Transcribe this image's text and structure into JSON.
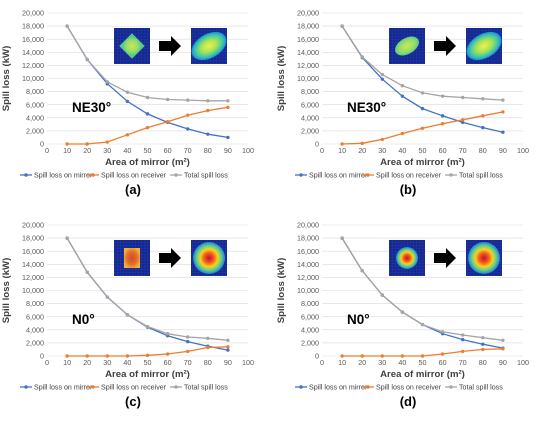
{
  "colors": {
    "mirror": "#4472C4",
    "receiver": "#ED7D31",
    "total": "#A5A5A5",
    "grid": "#D9D9D9",
    "axis_text": "#595959"
  },
  "chart_data": [
    {
      "type": "line",
      "panel_label": "(a)",
      "annotation": "NE30°",
      "inset_shapes": [
        "rotated-square",
        "ellipse"
      ],
      "xlabel": "Area of mirror (m²)",
      "ylabel": "Spill loss (kW)",
      "xlim": [
        0,
        100
      ],
      "ylim": [
        0,
        20000
      ],
      "xticks": [
        "0",
        "10",
        "20",
        "30",
        "40",
        "50",
        "60",
        "70",
        "80",
        "90",
        "100"
      ],
      "yticks": [
        "0",
        "2,000",
        "4,000",
        "6,000",
        "8,000",
        "10,000",
        "12,000",
        "14,000",
        "16,000",
        "18,000",
        "20,000"
      ],
      "legend": "bottom",
      "grid": true,
      "x": [
        10,
        20,
        30,
        40,
        50,
        60,
        70,
        80,
        90
      ],
      "series": [
        {
          "name": "Spill loss on mirror",
          "values": [
            18000,
            12900,
            9200,
            6500,
            4600,
            3300,
            2300,
            1500,
            1000
          ]
        },
        {
          "name": "Spill loss on receiver",
          "values": [
            0,
            0,
            300,
            1400,
            2500,
            3400,
            4400,
            5100,
            5600
          ]
        },
        {
          "name": "Total spill loss",
          "values": [
            18000,
            12900,
            9500,
            7900,
            7100,
            6800,
            6700,
            6600,
            6600
          ]
        }
      ]
    },
    {
      "type": "line",
      "panel_label": "(b)",
      "annotation": "NE30°",
      "inset_shapes": [
        "ellipse",
        "ellipse"
      ],
      "xlabel": "Area of mirror (m²)",
      "ylabel": "Spill loss (kW)",
      "xlim": [
        0,
        100
      ],
      "ylim": [
        0,
        20000
      ],
      "xticks": [
        "0",
        "10",
        "20",
        "30",
        "40",
        "50",
        "60",
        "70",
        "80",
        "90",
        "100"
      ],
      "yticks": [
        "0",
        "2,000",
        "4,000",
        "6,000",
        "8,000",
        "10,000",
        "12,000",
        "14,000",
        "16,000",
        "18,000",
        "20,000"
      ],
      "legend": "bottom",
      "grid": true,
      "x": [
        10,
        20,
        30,
        40,
        50,
        60,
        70,
        80,
        90
      ],
      "series": [
        {
          "name": "Spill loss on mirror",
          "values": [
            18000,
            13200,
            9900,
            7300,
            5400,
            4300,
            3300,
            2500,
            1800
          ]
        },
        {
          "name": "Spill loss on receiver",
          "values": [
            0,
            100,
            700,
            1600,
            2400,
            3100,
            3700,
            4300,
            4900
          ]
        },
        {
          "name": "Total spill loss",
          "values": [
            18000,
            13300,
            10600,
            8900,
            7800,
            7300,
            7100,
            6900,
            6700
          ]
        }
      ]
    },
    {
      "type": "line",
      "panel_label": "(c)",
      "annotation": "N0°",
      "inset_shapes": [
        "square",
        "circle"
      ],
      "xlabel": "Area of mirror (m²)",
      "ylabel": "Spill loss (kW)",
      "xlim": [
        0,
        100
      ],
      "ylim": [
        0,
        20000
      ],
      "xticks": [
        "0",
        "10",
        "20",
        "30",
        "40",
        "50",
        "60",
        "70",
        "80",
        "90",
        "100"
      ],
      "yticks": [
        "0",
        "2,000",
        "4,000",
        "6,000",
        "8,000",
        "10,000",
        "12,000",
        "14,000",
        "16,000",
        "18,000",
        "20,000"
      ],
      "legend": "bottom",
      "grid": true,
      "x": [
        10,
        20,
        30,
        40,
        50,
        60,
        70,
        80,
        90
      ],
      "series": [
        {
          "name": "Spill loss on mirror",
          "values": [
            18000,
            12800,
            9000,
            6300,
            4400,
            3100,
            2200,
            1500,
            900
          ]
        },
        {
          "name": "Spill loss on receiver",
          "values": [
            0,
            0,
            0,
            0,
            100,
            300,
            700,
            1300,
            1400
          ]
        },
        {
          "name": "Total spill loss",
          "values": [
            18000,
            12800,
            9000,
            6300,
            4500,
            3400,
            2900,
            2700,
            2400
          ]
        }
      ]
    },
    {
      "type": "line",
      "panel_label": "(d)",
      "annotation": "N0°",
      "inset_shapes": [
        "circle",
        "circle"
      ],
      "xlabel": "Area of mirror (m²)",
      "ylabel": "Spill loss (kW)",
      "xlim": [
        0,
        100
      ],
      "ylim": [
        0,
        20000
      ],
      "xticks": [
        "0",
        "10",
        "20",
        "30",
        "40",
        "50",
        "60",
        "70",
        "80",
        "90",
        "100"
      ],
      "yticks": [
        "0",
        "2,000",
        "4,000",
        "6,000",
        "8,000",
        "10,000",
        "12,000",
        "14,000",
        "16,000",
        "18,000",
        "20,000"
      ],
      "legend": "bottom",
      "grid": true,
      "x": [
        10,
        20,
        30,
        40,
        50,
        60,
        70,
        80,
        90
      ],
      "series": [
        {
          "name": "Spill loss on mirror",
          "values": [
            18000,
            13000,
            9300,
            6700,
            4800,
            3400,
            2500,
            1800,
            1200
          ]
        },
        {
          "name": "Spill loss on receiver",
          "values": [
            0,
            0,
            0,
            0,
            0,
            300,
            700,
            1000,
            1100
          ]
        },
        {
          "name": "Total spill loss",
          "values": [
            18000,
            13000,
            9300,
            6700,
            4800,
            3700,
            3200,
            2800,
            2400
          ]
        }
      ]
    }
  ]
}
